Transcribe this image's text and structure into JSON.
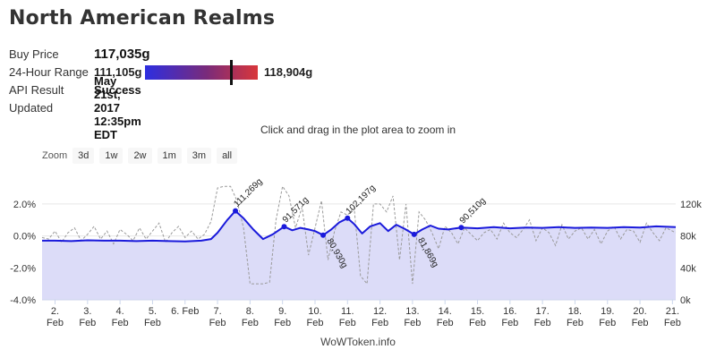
{
  "title": "North American Realms",
  "info": {
    "buy_price_label": "Buy Price",
    "buy_price": "117,035g",
    "range_label": "24-Hour Range",
    "range_low": "111,105g",
    "range_high": "118,904g",
    "range_position": 0.76,
    "api_label": "API Result",
    "api_value": "Success",
    "updated_label": "Updated",
    "updated_value": "May 21st, 2017 12:35pm EDT"
  },
  "hint": "Click and drag in the plot area to zoom in",
  "zoom": {
    "label": "Zoom",
    "buttons": [
      "3d",
      "1w",
      "2w",
      "1m",
      "3m",
      "all"
    ]
  },
  "footer": "WoWToken.info",
  "colors": {
    "price_line": "#1a1adb",
    "price_fill": "#dcdcf8",
    "pct_line": "#9a9a9a",
    "range_low": "#2d2ee0",
    "range_high": "#d9363a"
  },
  "chart_data": {
    "type": "line",
    "x_tick_labels": [
      [
        "2.",
        "Feb"
      ],
      [
        "3.",
        "Feb"
      ],
      [
        "4.",
        "Feb"
      ],
      [
        "5.",
        "Feb"
      ],
      [
        "6. Feb",
        ""
      ],
      [
        "7.",
        "Feb"
      ],
      [
        "8.",
        "Feb"
      ],
      [
        "9.",
        "Feb"
      ],
      [
        "10.",
        "Feb"
      ],
      [
        "11.",
        "Feb"
      ],
      [
        "12.",
        "Feb"
      ],
      [
        "13.",
        "Feb"
      ],
      [
        "14.",
        "Feb"
      ],
      [
        "15.",
        "Feb"
      ],
      [
        "16.",
        "Feb"
      ],
      [
        "17.",
        "Feb"
      ],
      [
        "18.",
        "Feb"
      ],
      [
        "19.",
        "Feb"
      ],
      [
        "20.",
        "Feb"
      ],
      [
        "21.",
        "Feb"
      ]
    ],
    "xlim": [
      1.6,
      21.1
    ],
    "left_axis": {
      "ticks": [
        "2.0%",
        "0.0%",
        "-2.0%",
        "-4.0%"
      ],
      "values": [
        2,
        0,
        -2,
        -4
      ],
      "range": [
        -4,
        3
      ]
    },
    "right_axis": {
      "ticks": [
        "120k",
        "80k",
        "40k",
        "0k"
      ],
      "values": [
        120000,
        80000,
        40000,
        0
      ],
      "range": [
        0,
        140000
      ]
    },
    "price_series": {
      "x": [
        1.6,
        2.0,
        2.5,
        3.0,
        3.5,
        4.0,
        4.5,
        5.0,
        5.5,
        6.0,
        6.5,
        6.8,
        7.0,
        7.3,
        7.55,
        7.8,
        8.1,
        8.4,
        8.7,
        9.05,
        9.3,
        9.55,
        9.8,
        10.0,
        10.25,
        10.5,
        10.75,
        11.0,
        11.2,
        11.45,
        11.7,
        12.0,
        12.25,
        12.5,
        12.75,
        13.05,
        13.3,
        13.55,
        13.8,
        14.1,
        14.5,
        15.0,
        15.5,
        16.0,
        16.5,
        17.0,
        17.5,
        18.0,
        18.5,
        19.0,
        19.5,
        20.0,
        20.5,
        21.1
      ],
      "y": [
        74000,
        74000,
        73500,
        74500,
        74000,
        74000,
        73500,
        74000,
        73500,
        73000,
        74000,
        76000,
        84000,
        100000,
        111269,
        102000,
        88000,
        76000,
        82000,
        91571,
        87000,
        90000,
        88000,
        86000,
        80930,
        88000,
        97000,
        102197,
        95000,
        83000,
        92000,
        96000,
        86000,
        94000,
        89000,
        81869,
        88000,
        93000,
        89000,
        88000,
        90510,
        89500,
        91000,
        89500,
        90500,
        90000,
        91000,
        90000,
        90500,
        90000,
        91000,
        90500,
        92000,
        91000
      ]
    },
    "pct_series": {
      "x": [
        1.6,
        1.8,
        2.0,
        2.2,
        2.4,
        2.6,
        2.8,
        3.0,
        3.2,
        3.4,
        3.6,
        3.8,
        4.0,
        4.2,
        4.4,
        4.6,
        4.8,
        5.0,
        5.2,
        5.4,
        5.6,
        5.8,
        6.0,
        6.2,
        6.4,
        6.6,
        6.8,
        7.0,
        7.2,
        7.4,
        7.6,
        7.8,
        8.0,
        8.2,
        8.4,
        8.6,
        8.8,
        9.0,
        9.2,
        9.4,
        9.6,
        9.8,
        10.0,
        10.2,
        10.4,
        10.6,
        10.8,
        11.0,
        11.2,
        11.4,
        11.6,
        11.8,
        12.0,
        12.2,
        12.4,
        12.6,
        12.8,
        13.0,
        13.2,
        13.4,
        13.6,
        13.8,
        14.0,
        14.2,
        14.4,
        14.6,
        14.8,
        15.0,
        15.2,
        15.4,
        15.6,
        15.8,
        16.0,
        16.2,
        16.4,
        16.6,
        16.8,
        17.0,
        17.2,
        17.4,
        17.6,
        17.8,
        18.0,
        18.2,
        18.4,
        18.6,
        18.8,
        19.0,
        19.2,
        19.4,
        19.6,
        19.8,
        20.0,
        20.2,
        20.4,
        20.6,
        20.8,
        21.1
      ],
      "y": [
        -0.1,
        -0.2,
        0.3,
        -0.4,
        0.2,
        0.5,
        -0.3,
        0.1,
        0.6,
        -0.2,
        0.3,
        -0.5,
        0.4,
        0.1,
        -0.3,
        0.5,
        -0.2,
        0.3,
        0.8,
        -0.4,
        0.2,
        0.6,
        -0.1,
        0.3,
        -0.2,
        0.1,
        0.9,
        3.0,
        3.1,
        3.1,
        2.2,
        0.5,
        -3.0,
        -3.0,
        -3.0,
        -2.9,
        1.0,
        3.1,
        2.5,
        0.5,
        1.8,
        -1.2,
        0.5,
        2.2,
        -1.5,
        0.3,
        1.5,
        1.3,
        1.8,
        -2.5,
        -3.0,
        2.0,
        2.0,
        1.5,
        2.5,
        -1.5,
        2.0,
        -3.0,
        1.5,
        1.0,
        0.2,
        -0.8,
        0.6,
        0.2,
        -0.5,
        0.5,
        0.1,
        -0.3,
        0.2,
        0.4,
        -0.2,
        0.8,
        0.2,
        -0.1,
        0.4,
        1.0,
        -0.3,
        0.5,
        0.2,
        -0.6,
        0.7,
        -0.2,
        0.3,
        0.5,
        -0.2,
        0.4,
        -0.5,
        0.3,
        0.6,
        -0.2,
        0.4,
        0.3,
        -0.4,
        0.8,
        0.2,
        -0.3,
        0.5,
        0.2
      ]
    },
    "annotations": [
      {
        "x": 7.55,
        "y": 111269,
        "text": "111,269g",
        "dir": "up"
      },
      {
        "x": 9.05,
        "y": 91571,
        "text": "91,571g",
        "dir": "up"
      },
      {
        "x": 10.25,
        "y": 80930,
        "text": "80,930g",
        "dir": "down"
      },
      {
        "x": 11.0,
        "y": 102197,
        "text": "102,197g",
        "dir": "up"
      },
      {
        "x": 13.05,
        "y": 81869,
        "text": "81,869g",
        "dir": "down"
      },
      {
        "x": 14.5,
        "y": 90510,
        "text": "90,510g",
        "dir": "up"
      }
    ]
  }
}
